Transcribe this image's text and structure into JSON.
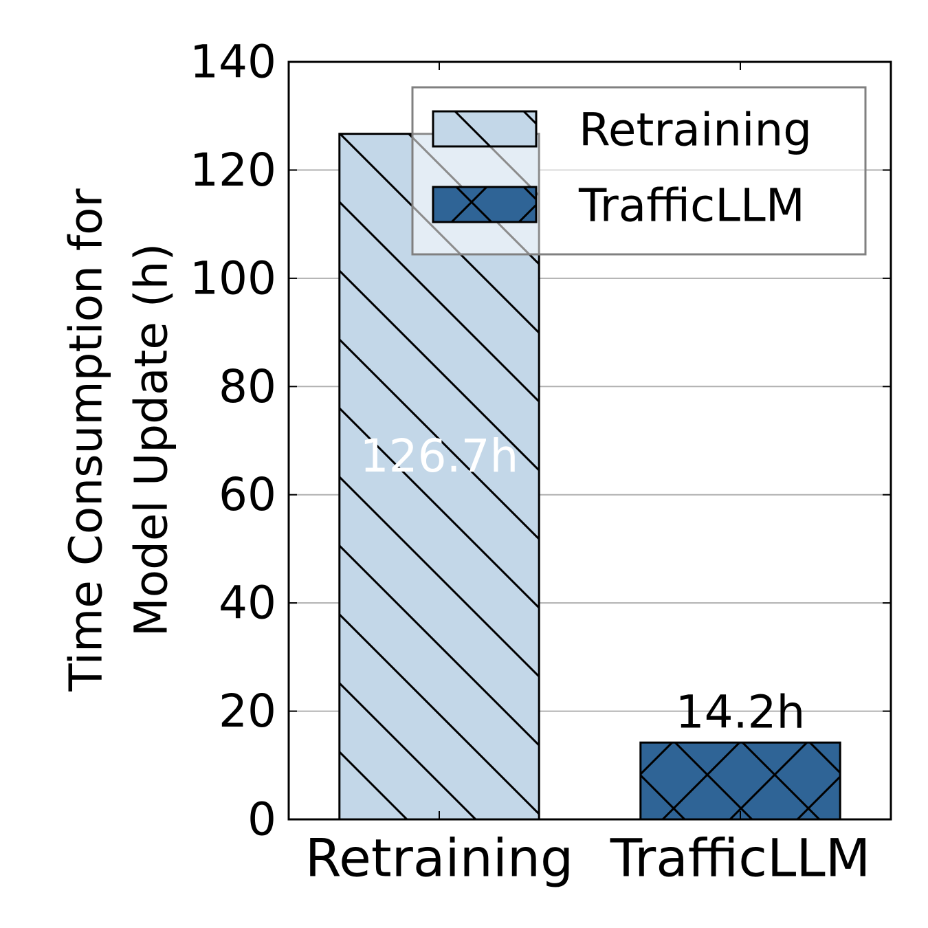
{
  "chart_data": {
    "type": "bar",
    "categories": [
      "Retraining",
      "TrafficLLM"
    ],
    "values": [
      126.7,
      14.2
    ],
    "value_labels": [
      "126.7h",
      "14.2h"
    ],
    "ylabel_lines": [
      "Time Consumption for",
      "Model Update (h)"
    ],
    "ylim": [
      0,
      140
    ],
    "yticks": [
      0,
      20,
      40,
      60,
      80,
      100,
      120,
      140
    ],
    "grid": true,
    "grid_axis": "y",
    "legend": {
      "placement": "top-right",
      "entries": [
        "Retraining",
        "TrafficLLM"
      ]
    },
    "colors": {
      "Retraining": "#c3d7e8",
      "TrafficLLM": "#2f6496",
      "bar_edge": "#000000",
      "grid": "#b0b0b0",
      "inner_label": "#ffffff"
    },
    "hatches": {
      "Retraining": "diagonal",
      "TrafficLLM": "cross-diagonal"
    }
  }
}
